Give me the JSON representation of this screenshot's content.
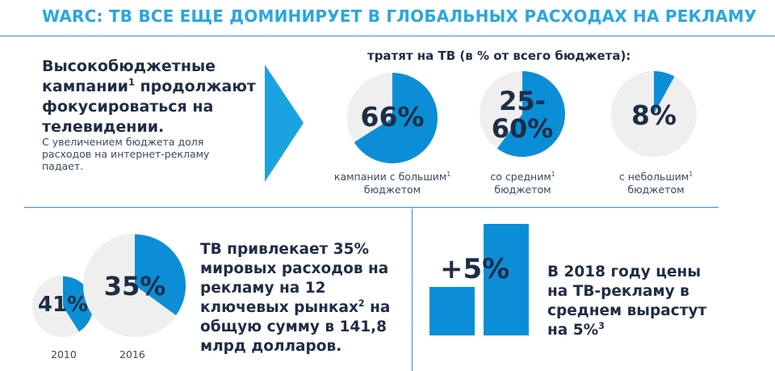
{
  "title": "WARC: ТВ ВСЕ ЕЩЕ ДОМИНИРУЕТ В ГЛОБАЛЬНЫХ РАСХОДАХ НА РЕКЛАМУ",
  "left_block": {
    "headline_part1": "Высокобюджетные кампании",
    "headline_sup": "1",
    "headline_part2": " продолжают фокусироваться на телевидении.",
    "note": "С увеличением бюджета доля расходов на интернет-рекламу падает."
  },
  "pies_top": {
    "subtitle": "тратят на ТВ (в % от всего бюджета):",
    "items": [
      {
        "label": "66%",
        "value": 66,
        "caption_line1": "кампании с большим",
        "sup": "1",
        "caption_line2": "бюджетом"
      },
      {
        "label_line1": "25-",
        "label_line2": "60%",
        "value": 60,
        "caption_line1": "со средним",
        "sup": "1",
        "caption_line2": "бюджетом"
      },
      {
        "label": "8%",
        "value": 8,
        "caption_line1": "с небольшим",
        "sup": "1",
        "caption_line2": "бюджетом"
      }
    ]
  },
  "bottom_left": {
    "pies": [
      {
        "label": "41%",
        "value": 41,
        "year": "2010"
      },
      {
        "label": "35%",
        "value": 35,
        "year": "2016"
      }
    ],
    "text_part1": "ТВ привлекает 35% мировых расходов на рекламу на 12 ключевых рынках",
    "text_sup": "2",
    "text_part2": " на общую сумму в 141,8 млрд долларов."
  },
  "bottom_right": {
    "bar_label": "+5%",
    "bars": [
      {
        "value": 100
      },
      {
        "value": 105
      }
    ],
    "text_part1": "В 2018 году цены на ТВ-рекламу в среднем вырастут на 5%",
    "text_sup": "3"
  },
  "colors": {
    "accent": "#0b8ed6",
    "title": "#2aa7dc",
    "pie_bg": "#efefef",
    "arrow": "#1aa3e0",
    "text_dark": "#1f2d45"
  }
}
